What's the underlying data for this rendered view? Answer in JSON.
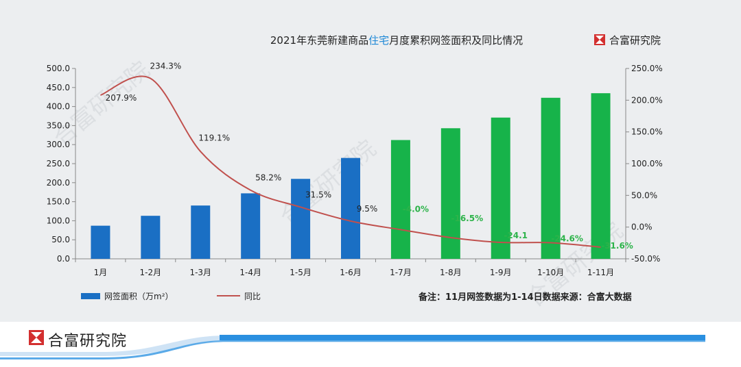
{
  "title_parts": [
    "2021年东莞新建商品",
    "住宅",
    "月度累积网签面积及同比情况"
  ],
  "brand_top": "合富研究院",
  "watermark": "合富研究院",
  "legend": {
    "bar": "网签面积（万m²）",
    "line": "同比"
  },
  "note": "备注：11月网签数据为1-14日数据来源：合富大数据",
  "footer_brand": "合富研究院",
  "colors": {
    "blue": "#1a6fc4",
    "green": "#17b34a",
    "line": "#c0504d",
    "label_green": "#2db34a",
    "accent": "#1e88d6"
  },
  "chart_data": {
    "type": "bar",
    "categories": [
      "1月",
      "1-2月",
      "1-3月",
      "1-4月",
      "1-5月",
      "1-6月",
      "1-7月",
      "1-8月",
      "1-9月",
      "1-10月",
      "1-11月"
    ],
    "series": [
      {
        "name": "网签面积（万m²）",
        "type": "bar",
        "axis": "left",
        "values": [
          87,
          113,
          140,
          172,
          210,
          265,
          312,
          343,
          371,
          423,
          435
        ],
        "colors": [
          "#1a6fc4",
          "#1a6fc4",
          "#1a6fc4",
          "#1a6fc4",
          "#1a6fc4",
          "#1a6fc4",
          "#17b34a",
          "#17b34a",
          "#17b34a",
          "#17b34a",
          "#17b34a"
        ]
      },
      {
        "name": "同比",
        "type": "line",
        "axis": "right",
        "values": [
          207.9,
          234.3,
          119.1,
          58.2,
          31.5,
          9.5,
          -4.0,
          -16.5,
          -24.1,
          -24.6,
          -31.6
        ],
        "labels": [
          "207.9%",
          "234.3%",
          "119.1%",
          "58.2%",
          "31.5%",
          "9.5%",
          "-4.0%",
          "-16.5%",
          "-24.1",
          "-24.6%",
          "-31.6%"
        ]
      }
    ],
    "yleft": {
      "min": 0,
      "max": 500,
      "step": 50,
      "ticks": [
        "0.0",
        "50.0",
        "100.0",
        "150.0",
        "200.0",
        "250.0",
        "300.0",
        "350.0",
        "400.0",
        "450.0",
        "500.0"
      ]
    },
    "yright": {
      "min": -50,
      "max": 250,
      "step": 50,
      "ticks": [
        "-50.0%",
        "0.0%",
        "50.0%",
        "100.0%",
        "150.0%",
        "200.0%",
        "250.0%"
      ]
    },
    "legend_position": "bottom-left",
    "grid": false
  }
}
